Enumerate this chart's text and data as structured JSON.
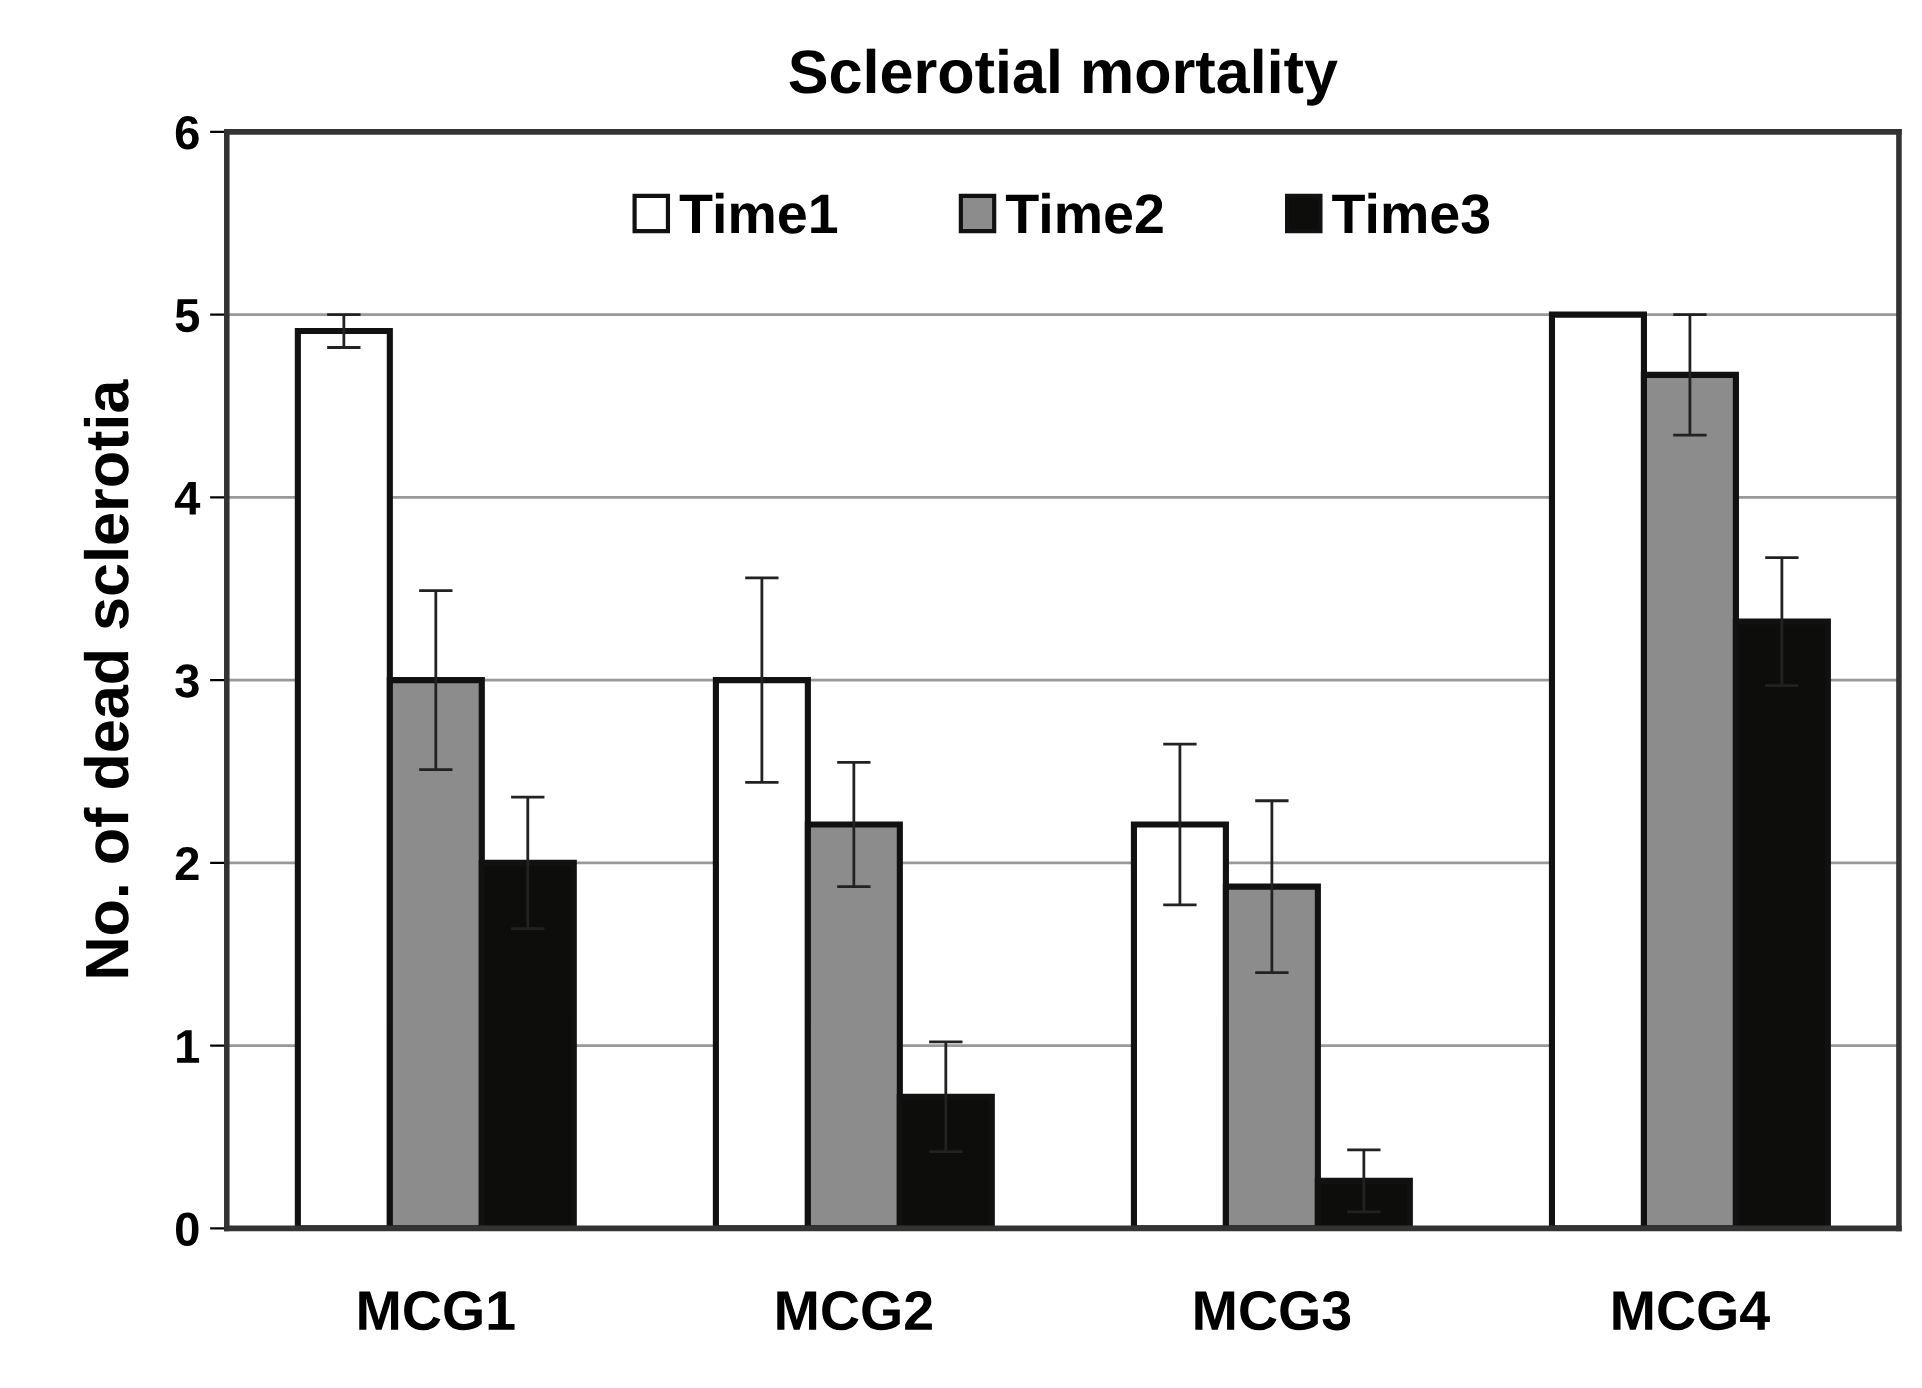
{
  "chart_data": {
    "type": "bar",
    "title": "Sclerotial mortality",
    "ylabel": "No. of dead sclerotia",
    "categories": [
      "MCG1",
      "MCG2",
      "MCG3",
      "MCG4"
    ],
    "series": [
      {
        "name": "Time1",
        "color": "#ffffff",
        "values": [
          4.91,
          3.0,
          2.21,
          5.0
        ],
        "errors": [
          0.09,
          0.56,
          0.44,
          null
        ]
      },
      {
        "name": "Time2",
        "color": "#8c8c8c",
        "values": [
          3.0,
          2.21,
          1.87,
          4.67
        ],
        "errors": [
          0.49,
          0.34,
          0.47,
          0.33
        ]
      },
      {
        "name": "Time3",
        "color": "#0d0d0b",
        "values": [
          2.0,
          0.72,
          0.26,
          3.32
        ],
        "errors": [
          0.36,
          0.3,
          0.17,
          0.35
        ]
      }
    ],
    "ylim": [
      0,
      6
    ],
    "yticks": [
      0,
      1,
      2,
      3,
      4,
      5,
      6
    ],
    "grid": "y",
    "legend": "top"
  }
}
